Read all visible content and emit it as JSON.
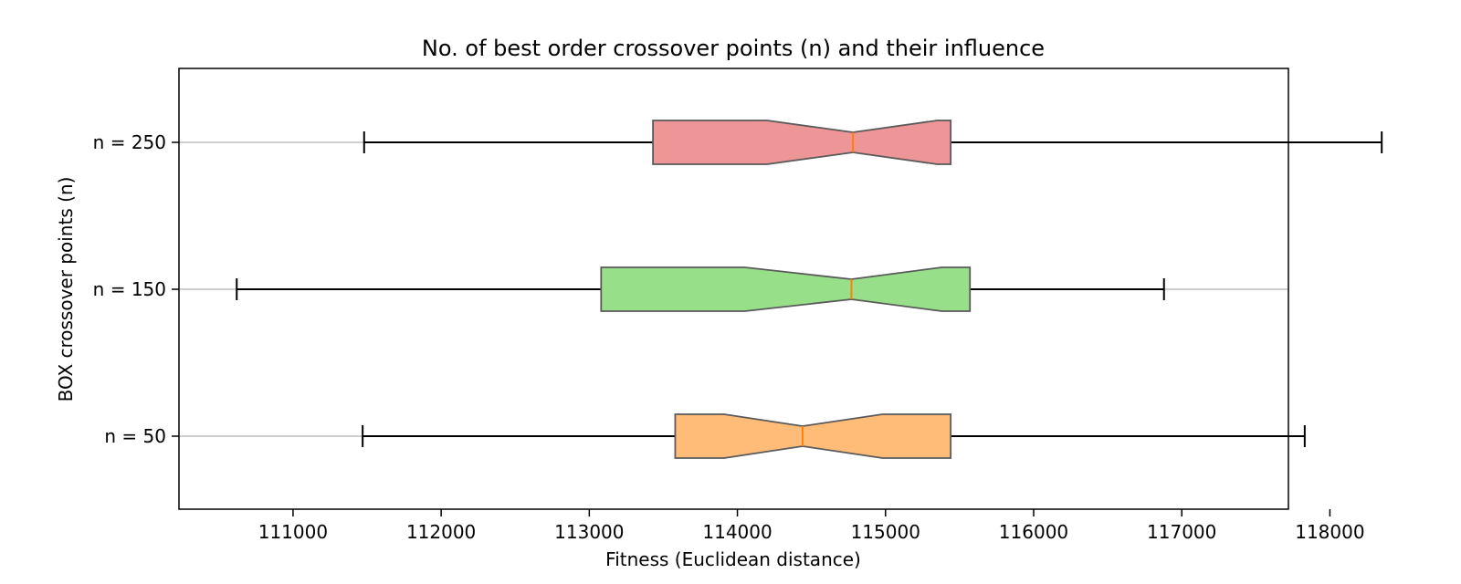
{
  "chart_data": {
    "type": "boxplot",
    "orientation": "horizontal",
    "notched": true,
    "title": "No. of best order crossover points (n) and their influence",
    "xlabel": "Fitness (Euclidean distance)",
    "ylabel": "BOX crossover points (n)",
    "xlim": [
      110230,
      117720
    ],
    "x_ticks": [
      111000,
      112000,
      113000,
      114000,
      115000,
      116000,
      117000,
      118000
    ],
    "x_tick_labels": [
      "111000",
      "112000",
      "113000",
      "114000",
      "115000",
      "116000",
      "117000",
      "118000"
    ],
    "grid": "horizontal lines at categories",
    "categories": [
      "n = 50",
      "n = 150",
      "n = 250"
    ],
    "series": [
      {
        "category": "n = 50",
        "whisker_low": 111470,
        "q1": 113580,
        "notch_low": 113910,
        "median": 114440,
        "notch_high": 114980,
        "q3": 115440,
        "whisker_high": 117830,
        "color": "#ffbb78"
      },
      {
        "category": "n = 150",
        "whisker_low": 110620,
        "q1": 113080,
        "notch_low": 114050,
        "median": 114770,
        "notch_high": 115380,
        "q3": 115570,
        "whisker_high": 116880,
        "color": "#98df8a"
      },
      {
        "category": "n = 250",
        "whisker_low": 111480,
        "q1": 113430,
        "notch_low": 114200,
        "median": 114780,
        "notch_high": 115350,
        "q3": 115440,
        "whisker_high": 118350,
        "color": "#ed9597"
      }
    ],
    "median_color": "#ff7f0e"
  }
}
